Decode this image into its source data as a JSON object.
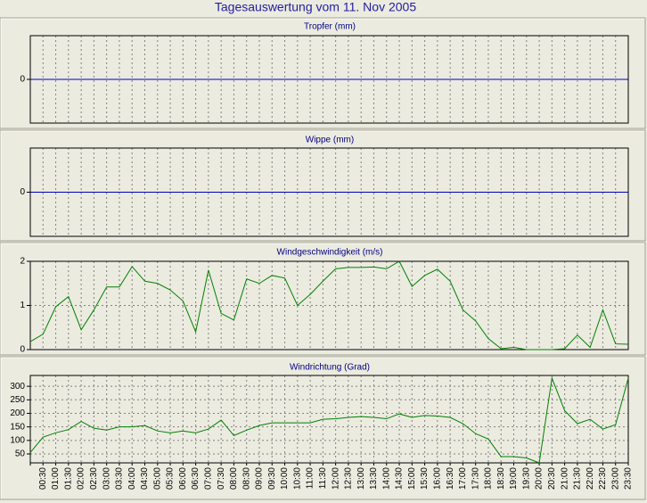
{
  "title": "Tagesauswertung vom 11. Nov 2005",
  "chart_data": [
    {
      "type": "line",
      "title": "Tropfer (mm)",
      "ylim": [
        -1,
        1
      ],
      "yticks": [
        0
      ],
      "zero_line_color": "#0000c0",
      "grid": true,
      "series": []
    },
    {
      "type": "line",
      "title": "Wippe (mm)",
      "ylim": [
        -1,
        1
      ],
      "yticks": [
        0
      ],
      "zero_line_color": "#0000c0",
      "grid": true,
      "series": []
    },
    {
      "type": "line",
      "title": "Windgeschwindigkeit (m/s)",
      "ylim": [
        0,
        2
      ],
      "yticks": [
        0,
        1,
        2
      ],
      "grid": true,
      "series": [
        {
          "color": "#008000",
          "values": [
            0.18,
            0.35,
            0.97,
            1.2,
            0.45,
            0.9,
            1.42,
            1.42,
            1.88,
            1.55,
            1.5,
            1.35,
            1.1,
            0.4,
            1.8,
            0.82,
            0.67,
            1.6,
            1.5,
            1.68,
            1.62,
            1.0,
            1.25,
            1.55,
            1.83,
            1.86,
            1.86,
            1.87,
            1.83,
            2.0,
            1.43,
            1.68,
            1.82,
            1.55,
            0.9,
            0.65,
            0.25,
            0.02,
            0.05,
            0,
            0,
            0,
            0.02,
            0.33,
            0.05,
            0.9,
            0.13,
            0.12
          ]
        }
      ]
    },
    {
      "type": "line",
      "title": "Windrichtung (Grad)",
      "ylim": [
        17,
        340
      ],
      "yticks": [
        50,
        100,
        150,
        200,
        250,
        300
      ],
      "grid": true,
      "categories": [
        null,
        "00:30",
        "01:00",
        "01:30",
        "02:00",
        "02:30",
        "03:00",
        "03:30",
        "04:00",
        "04:30",
        "05:00",
        "05:30",
        "06:00",
        "06:30",
        "07:00",
        "07:30",
        "08:00",
        "08:30",
        "09:00",
        "09:30",
        "10:00",
        "10:30",
        "11:00",
        "11:30",
        "12:00",
        "12:30",
        "13:00",
        "13:30",
        "14:00",
        "14:30",
        "15:00",
        "15:30",
        "16:00",
        "16:30",
        "17:00",
        "17:30",
        "18:00",
        "18:30",
        "19:00",
        "19:30",
        "20:00",
        "20:30",
        "21:00",
        "21:30",
        "22:00",
        "22:30",
        "23:00",
        "23:30"
      ],
      "series": [
        {
          "color": "#008000",
          "values": [
            55,
            112,
            128,
            140,
            170,
            145,
            138,
            150,
            150,
            155,
            135,
            128,
            135,
            128,
            142,
            175,
            118,
            138,
            155,
            165,
            165,
            165,
            165,
            178,
            180,
            185,
            188,
            185,
            180,
            198,
            185,
            192,
            190,
            185,
            162,
            125,
            105,
            40,
            40,
            35,
            17,
            330,
            210,
            162,
            178,
            142,
            158,
            330
          ]
        }
      ]
    }
  ]
}
